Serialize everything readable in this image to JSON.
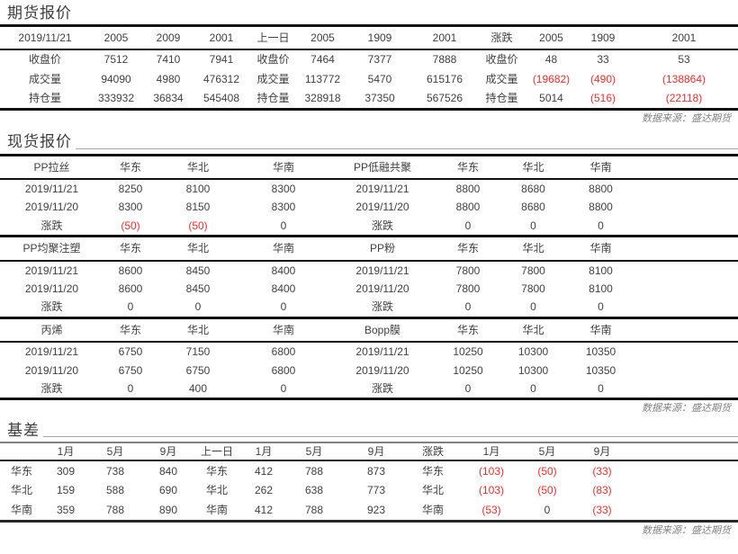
{
  "source_note": "数据来源：盛达期货",
  "colors": {
    "negative_value": "#f92b2b",
    "body_text": "#404040",
    "source_text": "#808080",
    "border_dark": "#111111",
    "basis_top_border": "#808080"
  },
  "futures": {
    "title": "期货报价",
    "header": [
      "2019/11/21",
      "2005",
      "2009",
      "2001",
      "上一日",
      "2005",
      "1909",
      "2001",
      "涨跌",
      "2005",
      "1909",
      "2001"
    ],
    "rows": [
      [
        "收盘价",
        "7512",
        "7410",
        "7941",
        "收盘价",
        "7464",
        "7377",
        "7888",
        "收盘价",
        "48",
        "33",
        "53"
      ],
      [
        "成交量",
        "94090",
        "4980",
        "476312",
        "成交量",
        "113772",
        "5470",
        "615176",
        "成交量",
        "(19682)",
        "(490)",
        "(138864)"
      ],
      [
        "持仓量",
        "333932",
        "36834",
        "545408",
        "持仓量",
        "328918",
        "37350",
        "567526",
        "持仓量",
        "5014",
        "(516)",
        "(22118)"
      ]
    ]
  },
  "spot": {
    "title": "现货报价",
    "bands": [
      {
        "header": [
          "PP拉丝",
          "华东",
          "华北",
          "华南",
          "PP低融共聚",
          "华东",
          "华北",
          "华南",
          ""
        ],
        "rows": [
          [
            "2019/11/21",
            "8250",
            "8100",
            "8300",
            "2019/11/21",
            "8800",
            "8680",
            "8800",
            ""
          ],
          [
            "2019/11/20",
            "8300",
            "8150",
            "8300",
            "2019/11/20",
            "8800",
            "8680",
            "8800",
            ""
          ],
          [
            "涨跌",
            "(50)",
            "(50)",
            "0",
            "涨跌",
            "0",
            "0",
            "0",
            ""
          ]
        ]
      },
      {
        "header": [
          "PP均聚注塑",
          "华东",
          "华北",
          "华南",
          "PP粉",
          "华东",
          "华北",
          "华南",
          ""
        ],
        "rows": [
          [
            "2019/11/21",
            "8600",
            "8450",
            "8400",
            "2019/11/21",
            "7800",
            "7800",
            "8100",
            ""
          ],
          [
            "2019/11/20",
            "8600",
            "8450",
            "8400",
            "2019/11/20",
            "7800",
            "7800",
            "8100",
            ""
          ],
          [
            "涨跌",
            "0",
            "0",
            "0",
            "涨跌",
            "0",
            "0",
            "0",
            ""
          ]
        ]
      },
      {
        "header": [
          "丙烯",
          "华东",
          "华北",
          "华南",
          "Bopp膜",
          "华东",
          "华北",
          "华南",
          ""
        ],
        "rows": [
          [
            "2019/11/21",
            "6750",
            "7150",
            "6800",
            "2019/11/21",
            "10250",
            "10300",
            "10350",
            ""
          ],
          [
            "2019/11/20",
            "6750",
            "6750",
            "6800",
            "2019/11/20",
            "10250",
            "10300",
            "10350",
            ""
          ],
          [
            "涨跌",
            "0",
            "400",
            "0",
            "涨跌",
            "0",
            "0",
            "0",
            ""
          ]
        ]
      }
    ]
  },
  "basis": {
    "title": "基差",
    "header": [
      "",
      "1月",
      "5月",
      "9月",
      "上一日",
      "1月",
      "5月",
      "9月",
      "涨跌",
      "1月",
      "5月",
      "9月",
      ""
    ],
    "rows": [
      [
        "华东",
        "309",
        "738",
        "840",
        "华东",
        "412",
        "788",
        "873",
        "华东",
        "(103)",
        "(50)",
        "(33)",
        ""
      ],
      [
        "华北",
        "159",
        "588",
        "690",
        "华北",
        "262",
        "638",
        "773",
        "华北",
        "(103)",
        "(50)",
        "(83)",
        ""
      ],
      [
        "华南",
        "359",
        "788",
        "890",
        "华南",
        "412",
        "788",
        "923",
        "华南",
        "(53)",
        "0",
        "(33)",
        ""
      ]
    ]
  }
}
